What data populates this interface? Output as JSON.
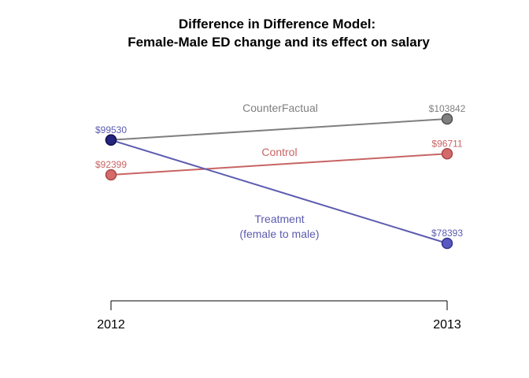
{
  "chart_data": {
    "type": "line",
    "title": [
      "Difference in Difference Model:",
      "Female-Male ED change and its effect on salary"
    ],
    "xlabel": "",
    "ylabel": "",
    "categories": [
      "2012",
      "2013"
    ],
    "ylim": [
      70000,
      112000
    ],
    "grid": false,
    "legend": "none",
    "series": [
      {
        "key": "counterfactual",
        "name": "CounterFactual",
        "name_lines": [
          "CounterFactual"
        ],
        "values": [
          99530,
          103842
        ],
        "value_labels": [
          "",
          "$103842"
        ],
        "line_color": "#7f7f7f",
        "marker_fill": "#7f7f7f",
        "marker_stroke": "#4f4f4f"
      },
      {
        "key": "control",
        "name": "Control",
        "name_lines": [
          "Control"
        ],
        "values": [
          92399,
          96711
        ],
        "value_labels": [
          "$92399",
          "$96711"
        ],
        "line_color": "#c86464",
        "marker_fill": "#d46a6a",
        "marker_stroke": "#a84848"
      },
      {
        "key": "treatment",
        "name": "Treatment (female to male)",
        "name_lines": [
          "Treatment",
          "(female to male)"
        ],
        "values": [
          99530,
          78393
        ],
        "value_labels": [
          "$99530",
          "$78393"
        ],
        "line_color": "#5b5bb0",
        "marker_fill": "#5858c0",
        "marker_stroke": "#34348c",
        "first_marker_fill": "#25257f",
        "first_marker_stroke": "#101050"
      }
    ]
  }
}
